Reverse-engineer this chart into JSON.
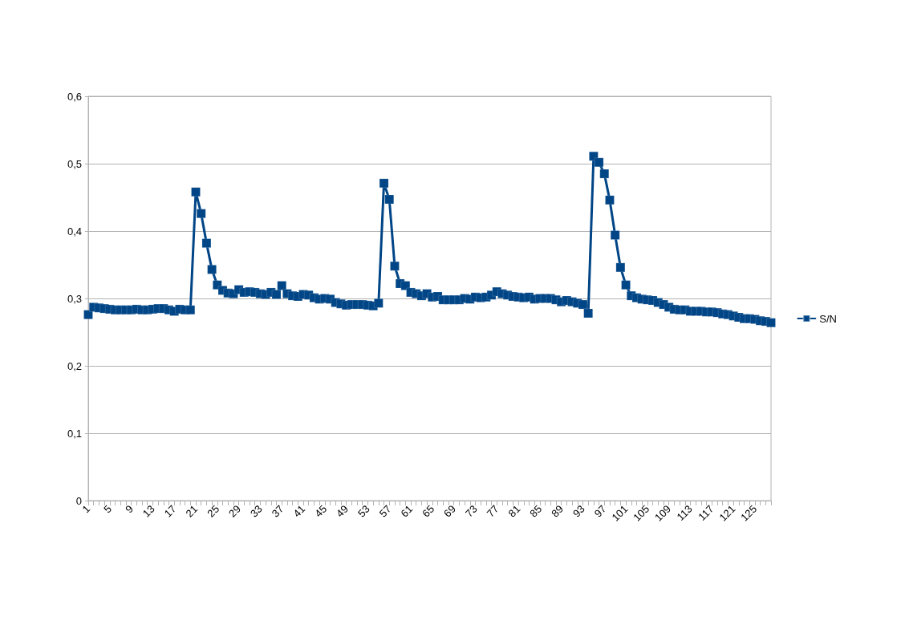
{
  "chart_data": {
    "type": "line",
    "categories": [
      "1",
      null,
      null,
      null,
      "5",
      null,
      null,
      null,
      "9",
      null,
      null,
      null,
      "13",
      null,
      null,
      null,
      "17",
      null,
      null,
      null,
      "21",
      null,
      null,
      null,
      "25",
      null,
      null,
      null,
      "29",
      null,
      null,
      null,
      "33",
      null,
      null,
      null,
      "37",
      null,
      null,
      null,
      "41",
      null,
      null,
      null,
      "45",
      null,
      null,
      null,
      "49",
      null,
      null,
      null,
      "53",
      null,
      null,
      null,
      "57",
      null,
      null,
      null,
      "61",
      null,
      null,
      null,
      "65",
      null,
      null,
      null,
      "69",
      null,
      null,
      null,
      "73",
      null,
      null,
      null,
      "77",
      null,
      null,
      null,
      "81",
      null,
      null,
      null,
      "85",
      null,
      null,
      null,
      "89",
      null,
      null,
      null,
      "93",
      null,
      null,
      null,
      "97",
      null,
      null,
      null,
      "101",
      null,
      null,
      null,
      "105",
      null,
      null,
      null,
      "109",
      null,
      null,
      null,
      "113",
      null,
      null,
      null,
      "117",
      null,
      null,
      null,
      "121",
      null,
      null,
      null,
      "125",
      null,
      null,
      null
    ],
    "series": [
      {
        "name": "S/N",
        "color": "#004586",
        "values": [
          0.276,
          0.287,
          0.286,
          0.285,
          0.284,
          0.283,
          0.283,
          0.283,
          0.283,
          0.284,
          0.283,
          0.283,
          0.284,
          0.285,
          0.285,
          0.283,
          0.281,
          0.284,
          0.283,
          0.283,
          0.458,
          0.426,
          0.382,
          0.343,
          0.32,
          0.312,
          0.308,
          0.307,
          0.313,
          0.309,
          0.31,
          0.309,
          0.307,
          0.306,
          0.309,
          0.306,
          0.319,
          0.307,
          0.304,
          0.303,
          0.306,
          0.305,
          0.301,
          0.299,
          0.3,
          0.299,
          0.294,
          0.292,
          0.29,
          0.291,
          0.291,
          0.291,
          0.29,
          0.289,
          0.293,
          0.471,
          0.447,
          0.348,
          0.322,
          0.319,
          0.309,
          0.307,
          0.304,
          0.307,
          0.302,
          0.303,
          0.298,
          0.298,
          0.298,
          0.298,
          0.3,
          0.299,
          0.302,
          0.301,
          0.302,
          0.305,
          0.31,
          0.307,
          0.305,
          0.303,
          0.302,
          0.301,
          0.302,
          0.299,
          0.3,
          0.3,
          0.3,
          0.298,
          0.295,
          0.297,
          0.295,
          0.293,
          0.291,
          0.278,
          0.511,
          0.502,
          0.485,
          0.446,
          0.394,
          0.346,
          0.32,
          0.304,
          0.301,
          0.299,
          0.298,
          0.297,
          0.294,
          0.291,
          0.287,
          0.284,
          0.283,
          0.283,
          0.281,
          0.281,
          0.281,
          0.28,
          0.28,
          0.279,
          0.277,
          0.276,
          0.274,
          0.272,
          0.27,
          0.27,
          0.269,
          0.267,
          0.266,
          0.264
        ]
      }
    ],
    "ylim": [
      0,
      0.6
    ],
    "yticks": [
      0,
      {
        "value": 0.1,
        "label": "0,1"
      },
      {
        "value": 0.2,
        "label": "0,2"
      },
      {
        "value": 0.3,
        "label": "0,3"
      },
      {
        "value": 0.4,
        "label": "0,4"
      },
      {
        "value": 0.5,
        "label": "0,5"
      },
      {
        "value": 0.6,
        "label": "0,6"
      }
    ],
    "grid": "y",
    "legend": "right",
    "marker": "square",
    "line_style": "solid"
  }
}
